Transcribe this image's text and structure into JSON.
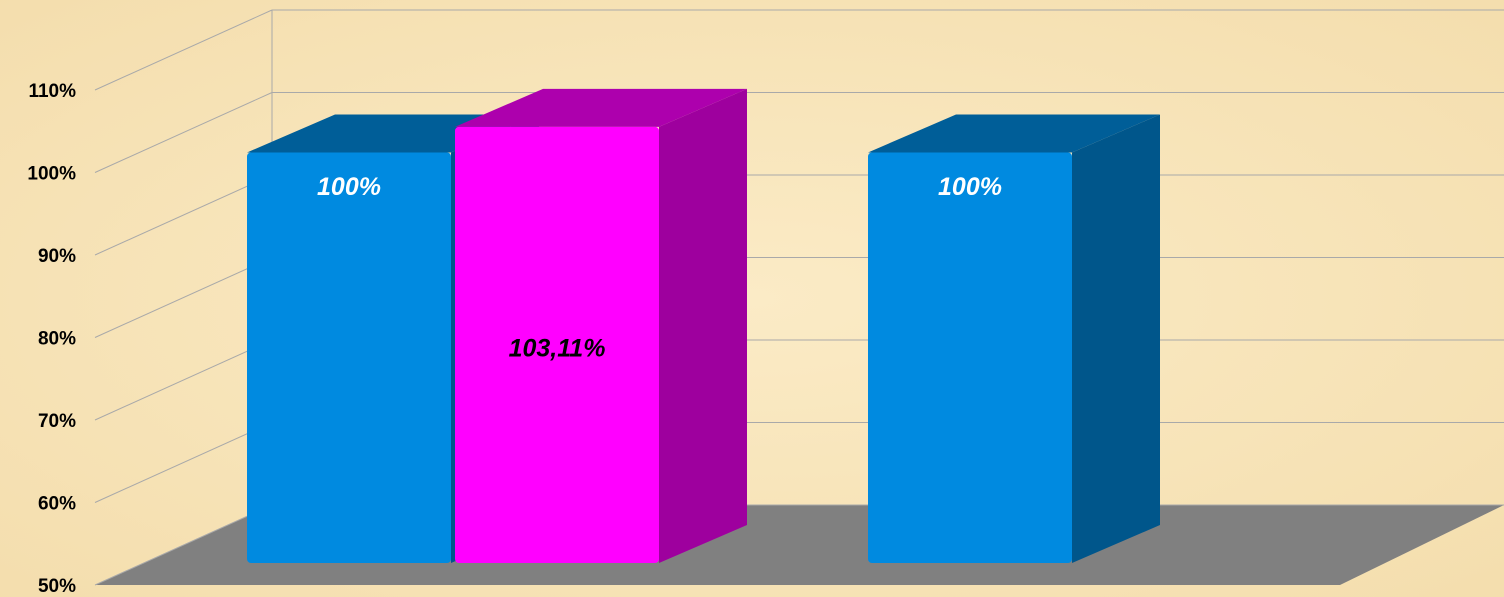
{
  "chart_data": {
    "type": "bar3d",
    "categories": [
      null,
      null
    ],
    "series": [
      {
        "color": "#008ae0",
        "values": [
          100,
          100
        ],
        "value_labels": [
          "100%",
          "100%"
        ]
      },
      {
        "color": "#ff00ff",
        "values": [
          103.11,
          null
        ],
        "value_labels": [
          "103,11%",
          null
        ]
      }
    ],
    "ylim": [
      50,
      110
    ],
    "yticks": [
      {
        "value": 50,
        "label": "50%"
      },
      {
        "value": 60,
        "label": "60%"
      },
      {
        "value": 70,
        "label": "70%"
      },
      {
        "value": 80,
        "label": "80%"
      },
      {
        "value": 90,
        "label": "90%"
      },
      {
        "value": 100,
        "label": "100%"
      },
      {
        "value": 110,
        "label": "110%"
      }
    ],
    "grid": true
  }
}
